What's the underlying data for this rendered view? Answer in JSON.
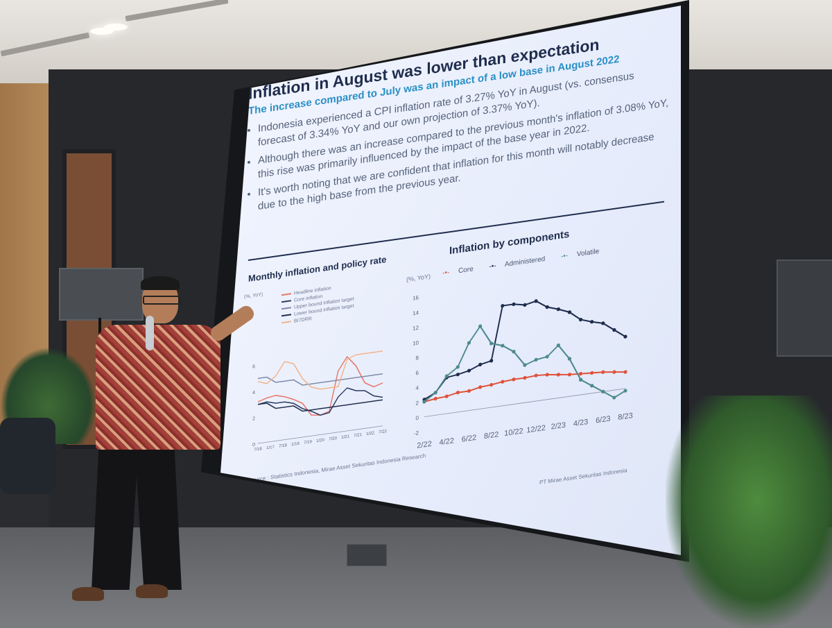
{
  "slide": {
    "title": "Inflation in August was lower than expectation",
    "subtitle": "The increase compared to July was an impact of a low base in August 2022",
    "bullets": [
      "Indonesia experienced a CPI inflation rate of 3.27% YoY in August (vs. consensus forecast of 3.34% YoY and our own projection of 3.37% YoY).",
      "Although there was an increase compared to the previous month's inflation of 3.08% YoY, this rise was primarily influenced by the impact of the base year in 2022.",
      "It's worth noting that we are confident that inflation for this month will notably decrease due to the high base from the previous year."
    ],
    "source": "Source : Statistics Indonesia, Mirae Asset Sekuritas Indonesia Research",
    "footer": "PT Mirae Asset Sekuritas Indonesia"
  },
  "chart_data": [
    {
      "type": "line",
      "title": "Monthly inflation and policy rate",
      "unit": "(%, YoY)",
      "legend": [
        "Headline inflation",
        "Core inflation",
        "Upper bound inflation target",
        "Lower bound inflation target",
        "BI7DRR"
      ],
      "legend_colors": [
        "#e8776a",
        "#2b3b63",
        "#7e8aa8",
        "#1f2d4d",
        "#f2b48a"
      ],
      "series": [
        {
          "name": "Headline inflation",
          "values": [
            3.2,
            3.4,
            3.5,
            3.3,
            3.0,
            2.6,
            1.6,
            1.5,
            1.7,
            4.7,
            5.7,
            4.9,
            3.5,
            3.1,
            3.3
          ]
        },
        {
          "name": "Core inflation",
          "values": [
            3.0,
            3.1,
            2.9,
            2.9,
            2.7,
            2.2,
            1.9,
            1.5,
            1.6,
            2.7,
            3.3,
            3.0,
            2.9,
            2.4,
            2.2
          ]
        },
        {
          "name": "Upper bound inflation target",
          "values": [
            5.0,
            5.0,
            4.5,
            4.5,
            4.5,
            4.0,
            4.0,
            4.0,
            4.0,
            4.0,
            4.0,
            4.0,
            4.0,
            4.0,
            4.0
          ]
        },
        {
          "name": "Lower bound inflation target",
          "values": [
            3.0,
            3.0,
            2.5,
            2.5,
            2.5,
            2.0,
            2.0,
            2.0,
            2.0,
            2.0,
            2.0,
            2.0,
            2.0,
            2.0,
            2.0
          ]
        },
        {
          "name": "BI7DRR",
          "values": [
            4.75,
            4.5,
            5.0,
            6.0,
            5.75,
            4.5,
            3.75,
            3.5,
            3.5,
            3.5,
            5.5,
            5.75,
            5.75,
            5.75,
            5.75
          ]
        }
      ],
      "yticks": [
        0,
        2,
        4,
        6
      ],
      "xticks": [
        "7/16",
        "1/17",
        "7/18",
        "1/19",
        "7/19",
        "1/20",
        "7/20",
        "1/21",
        "7/21",
        "1/22",
        "7/22"
      ],
      "ylim": [
        0,
        8
      ]
    },
    {
      "type": "line",
      "title": "Inflation by components",
      "unit": "(%, YoY)",
      "categories": [
        "2/22",
        "3/22",
        "4/22",
        "5/22",
        "6/22",
        "7/22",
        "8/22",
        "9/22",
        "10/22",
        "11/22",
        "12/22",
        "1/23",
        "2/23",
        "3/23",
        "4/23",
        "5/23",
        "6/23",
        "7/23",
        "8/23"
      ],
      "xtick_labels": [
        "2/22",
        "4/22",
        "6/22",
        "8/22",
        "10/22",
        "12/22",
        "2/23",
        "4/23",
        "6/23",
        "8/23"
      ],
      "series": [
        {
          "name": "Core",
          "color": "#e0513a",
          "values": [
            2.0,
            2.2,
            2.3,
            2.6,
            2.6,
            2.9,
            3.0,
            3.2,
            3.3,
            3.3,
            3.4,
            3.3,
            3.1,
            2.9,
            2.8,
            2.7,
            2.6,
            2.4,
            2.2
          ]
        },
        {
          "name": "Administered",
          "color": "#1f2d4d",
          "values": [
            2.3,
            3.0,
            4.8,
            5.0,
            5.3,
            5.9,
            6.2,
            13.3,
            13.3,
            13.0,
            13.3,
            12.3,
            11.8,
            11.2,
            10.0,
            9.5,
            9.1,
            8.0,
            6.9
          ]
        },
        {
          "name": "Volatile",
          "color": "#4e8a8f",
          "values": [
            2.0,
            3.0,
            5.0,
            6.0,
            9.0,
            11.0,
            8.5,
            8.0,
            7.0,
            5.0,
            5.5,
            5.7,
            7.0,
            5.0,
            2.0,
            1.0,
            0.0,
            -1.0,
            -0.3
          ]
        }
      ],
      "yticks": [
        -2,
        0,
        2,
        4,
        6,
        8,
        10,
        12,
        14,
        16
      ],
      "ylim": [
        -2,
        16
      ]
    }
  ]
}
